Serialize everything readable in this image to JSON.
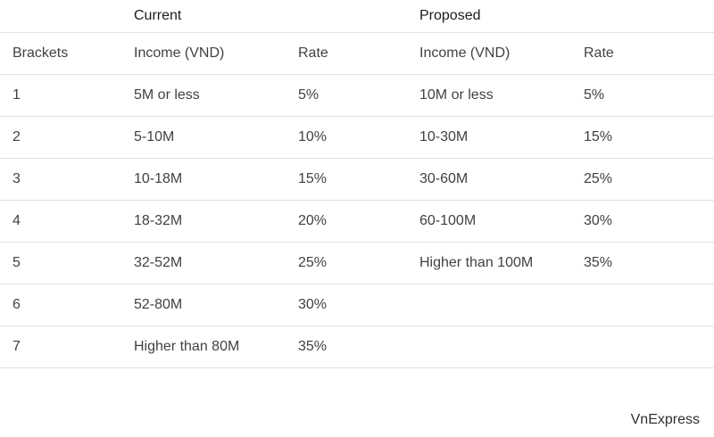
{
  "table": {
    "group_headers": {
      "brackets_spacer": "",
      "current": "Current",
      "current_rate_spacer": "",
      "proposed": "Proposed",
      "proposed_rate_spacer": ""
    },
    "column_headers": {
      "brackets": "Brackets",
      "income_current": "Income (VND)",
      "rate_current": "Rate",
      "income_proposed": "Income (VND)",
      "rate_proposed": "Rate"
    },
    "rows": [
      {
        "bracket": "1",
        "current_income": "5M or less",
        "current_rate": "5%",
        "proposed_income": "10M or less",
        "proposed_rate": "5%"
      },
      {
        "bracket": "2",
        "current_income": "5-10M",
        "current_rate": "10%",
        "proposed_income": "10-30M",
        "proposed_rate": "15%"
      },
      {
        "bracket": "3",
        "current_income": "10-18M",
        "current_rate": "15%",
        "proposed_income": "30-60M",
        "proposed_rate": "25%"
      },
      {
        "bracket": "4",
        "current_income": "18-32M",
        "current_rate": "20%",
        "proposed_income": "60-100M",
        "proposed_rate": "30%"
      },
      {
        "bracket": "5",
        "current_income": "32-52M",
        "current_rate": "25%",
        "proposed_income": "Higher than 100M",
        "proposed_rate": "35%"
      },
      {
        "bracket": "6",
        "current_income": "52-80M",
        "current_rate": "30%",
        "proposed_income": "",
        "proposed_rate": ""
      },
      {
        "bracket": "7",
        "current_income": "Higher than 80M",
        "current_rate": "35%",
        "proposed_income": "",
        "proposed_rate": ""
      }
    ]
  },
  "credit": "VnExpress",
  "colors": {
    "text": "#3f4245",
    "header_text": "#1c1c1c",
    "divider": "#e2e2e2",
    "background": "#ffffff"
  },
  "chart_data": {
    "type": "table",
    "columns": [
      "Brackets",
      "Current Income (VND)",
      "Current Rate",
      "Proposed Income (VND)",
      "Proposed Rate"
    ],
    "rows": [
      [
        "1",
        "5M or less",
        "5%",
        "10M or less",
        "5%"
      ],
      [
        "2",
        "5-10M",
        "10%",
        "10-30M",
        "15%"
      ],
      [
        "3",
        "10-18M",
        "15%",
        "30-60M",
        "25%"
      ],
      [
        "4",
        "18-32M",
        "20%",
        "60-100M",
        "30%"
      ],
      [
        "5",
        "32-52M",
        "25%",
        "Higher than 100M",
        "35%"
      ],
      [
        "6",
        "52-80M",
        "30%",
        "",
        ""
      ],
      [
        "7",
        "Higher than 80M",
        "35%",
        "",
        ""
      ]
    ],
    "group_columns": [
      {
        "name": "Current",
        "spans": [
          "Income (VND)",
          "Rate"
        ]
      },
      {
        "name": "Proposed",
        "spans": [
          "Income (VND)",
          "Rate"
        ]
      }
    ],
    "source": "VnExpress"
  }
}
